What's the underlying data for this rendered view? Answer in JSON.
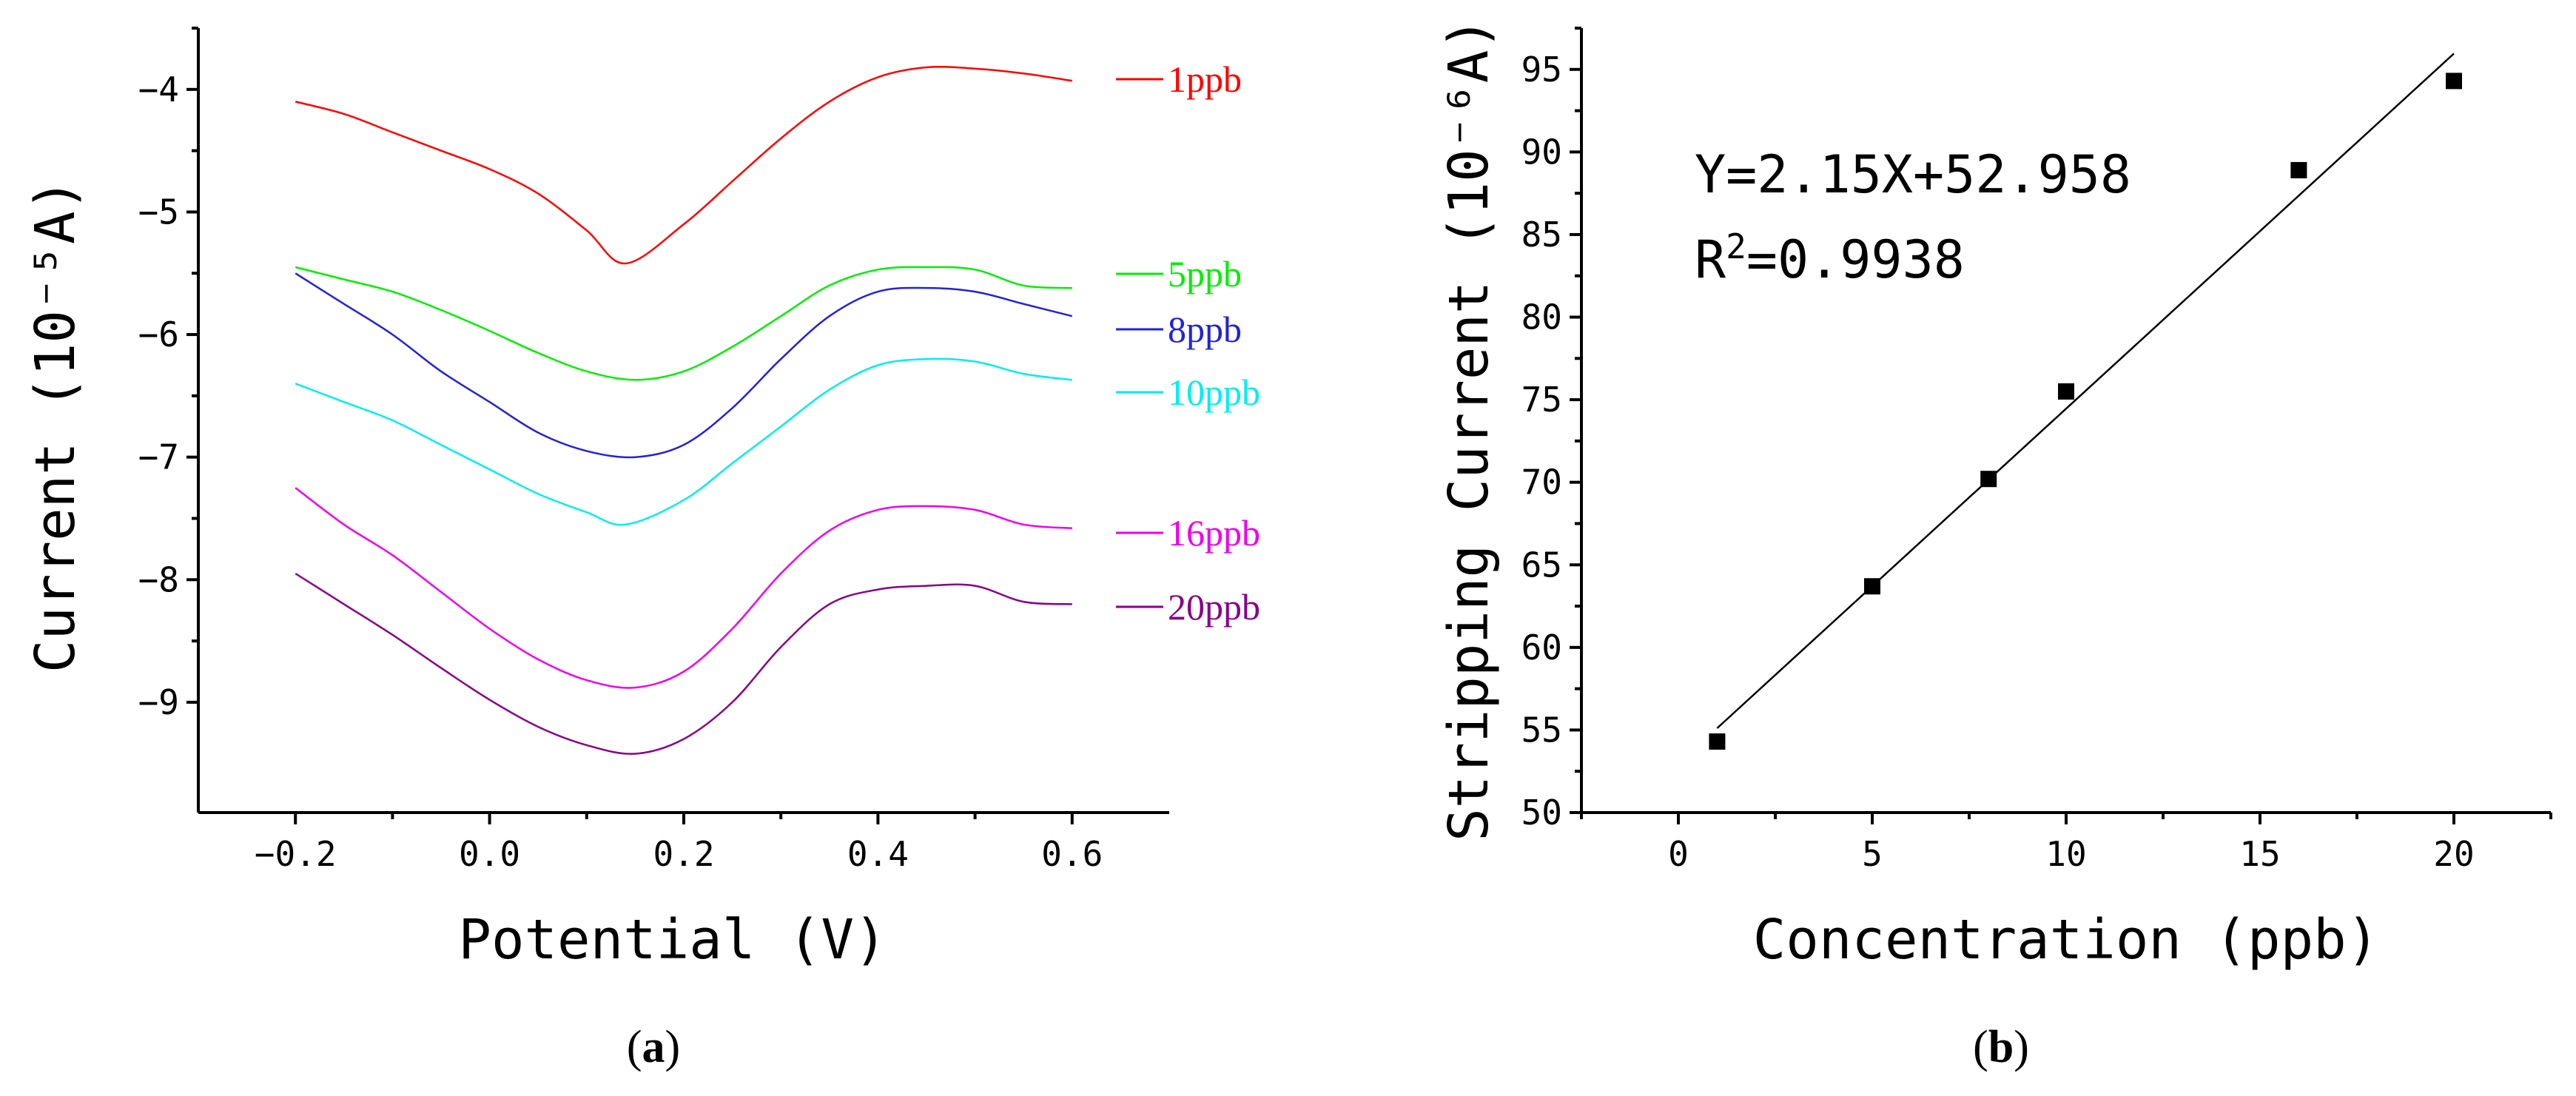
{
  "chart_data": [
    {
      "panel": "(a)",
      "panel_letter": "a",
      "type": "line",
      "title": "",
      "xlabel": "Potential (V)",
      "ylabel": "Current (10⁻⁵A)",
      "xlim": [
        -0.3,
        0.7
      ],
      "ylim": [
        -9.9,
        -3.5
      ],
      "xticks": [
        -0.2,
        0.0,
        0.2,
        0.4,
        0.6
      ],
      "xtick_labels": [
        "−0.2",
        "0.0",
        "0.2",
        "0.4",
        "0.6"
      ],
      "yticks": [
        -4,
        -5,
        -6,
        -7,
        -8,
        -9
      ],
      "ytick_labels": [
        "−4",
        "−5",
        "−6",
        "−7",
        "−8",
        "−9"
      ],
      "grid": false,
      "legend": "right, inline labels",
      "series": [
        {
          "name": "1ppb",
          "color": "#ff0000",
          "x": [
            -0.2,
            -0.15,
            -0.1,
            -0.05,
            0.0,
            0.05,
            0.1,
            0.14,
            0.2,
            0.25,
            0.3,
            0.35,
            0.4,
            0.45,
            0.5,
            0.55,
            0.6
          ],
          "y": [
            -4.1,
            -4.2,
            -4.35,
            -4.5,
            -4.65,
            -4.85,
            -5.15,
            -5.42,
            -5.1,
            -4.75,
            -4.4,
            -4.1,
            -3.9,
            -3.82,
            -3.83,
            -3.87,
            -3.93
          ]
        },
        {
          "name": "5ppb",
          "color": "#00ee00",
          "x": [
            -0.2,
            -0.15,
            -0.1,
            -0.05,
            0.0,
            0.05,
            0.1,
            0.15,
            0.2,
            0.25,
            0.3,
            0.35,
            0.4,
            0.45,
            0.5,
            0.55,
            0.6
          ],
          "y": [
            -5.45,
            -5.55,
            -5.65,
            -5.8,
            -5.97,
            -6.15,
            -6.3,
            -6.37,
            -6.3,
            -6.1,
            -5.85,
            -5.6,
            -5.47,
            -5.45,
            -5.47,
            -5.6,
            -5.62
          ]
        },
        {
          "name": "8ppb",
          "color": "#2222dd",
          "x": [
            -0.2,
            -0.15,
            -0.1,
            -0.05,
            0.0,
            0.05,
            0.1,
            0.15,
            0.2,
            0.25,
            0.3,
            0.35,
            0.4,
            0.45,
            0.5,
            0.55,
            0.6
          ],
          "y": [
            -5.5,
            -5.75,
            -6.0,
            -6.3,
            -6.55,
            -6.8,
            -6.95,
            -7.0,
            -6.9,
            -6.6,
            -6.2,
            -5.85,
            -5.65,
            -5.62,
            -5.65,
            -5.75,
            -5.85
          ]
        },
        {
          "name": "10ppb",
          "color": "#00eeee",
          "x": [
            -0.2,
            -0.15,
            -0.1,
            -0.05,
            0.0,
            0.05,
            0.1,
            0.14,
            0.2,
            0.25,
            0.3,
            0.35,
            0.4,
            0.45,
            0.5,
            0.55,
            0.6
          ],
          "y": [
            -6.4,
            -6.55,
            -6.7,
            -6.9,
            -7.1,
            -7.3,
            -7.45,
            -7.55,
            -7.35,
            -7.05,
            -6.75,
            -6.45,
            -6.25,
            -6.2,
            -6.22,
            -6.32,
            -6.37
          ]
        },
        {
          "name": "16ppb",
          "color": "#ee00ee",
          "x": [
            -0.2,
            -0.15,
            -0.1,
            -0.05,
            0.0,
            0.05,
            0.1,
            0.15,
            0.2,
            0.25,
            0.3,
            0.35,
            0.4,
            0.45,
            0.5,
            0.55,
            0.6
          ],
          "y": [
            -7.25,
            -7.55,
            -7.8,
            -8.1,
            -8.4,
            -8.65,
            -8.82,
            -8.88,
            -8.75,
            -8.4,
            -7.95,
            -7.6,
            -7.43,
            -7.4,
            -7.43,
            -7.55,
            -7.58
          ]
        },
        {
          "name": "20ppb",
          "color": "#880088",
          "x": [
            -0.2,
            -0.15,
            -0.1,
            -0.05,
            0.0,
            0.05,
            0.1,
            0.15,
            0.2,
            0.25,
            0.3,
            0.35,
            0.4,
            0.45,
            0.5,
            0.55,
            0.6
          ],
          "y": [
            -7.95,
            -8.2,
            -8.45,
            -8.72,
            -8.98,
            -9.2,
            -9.35,
            -9.42,
            -9.3,
            -9.0,
            -8.55,
            -8.2,
            -8.08,
            -8.05,
            -8.05,
            -8.18,
            -8.2
          ]
        }
      ]
    },
    {
      "panel": "(b)",
      "panel_letter": "b",
      "type": "scatter",
      "title": "",
      "xlabel": "Concentration (ppb)",
      "ylabel": "Stripping Current (10⁻⁶A)",
      "xlim": [
        -2.5,
        22.5
      ],
      "ylim": [
        50,
        97.5
      ],
      "xticks": [
        0,
        5,
        10,
        15,
        20
      ],
      "xtick_labels": [
        "0",
        "5",
        "10",
        "15",
        "20"
      ],
      "yticks": [
        50,
        55,
        60,
        65,
        70,
        75,
        80,
        85,
        90,
        95
      ],
      "ytick_labels": [
        "50",
        "55",
        "60",
        "65",
        "70",
        "75",
        "80",
        "85",
        "90",
        "95"
      ],
      "grid": false,
      "points": {
        "x": [
          1,
          5,
          8,
          10,
          16,
          20
        ],
        "y": [
          54.3,
          63.7,
          70.2,
          75.5,
          88.9,
          94.3
        ]
      },
      "fit": {
        "slope": 2.15,
        "intercept": 52.958,
        "x_range": [
          1,
          20
        ],
        "equation": "Y=2.15X+52.958",
        "r2_prefix": "R",
        "r2_exp": "2",
        "r2_value": "=0.9938"
      }
    }
  ]
}
